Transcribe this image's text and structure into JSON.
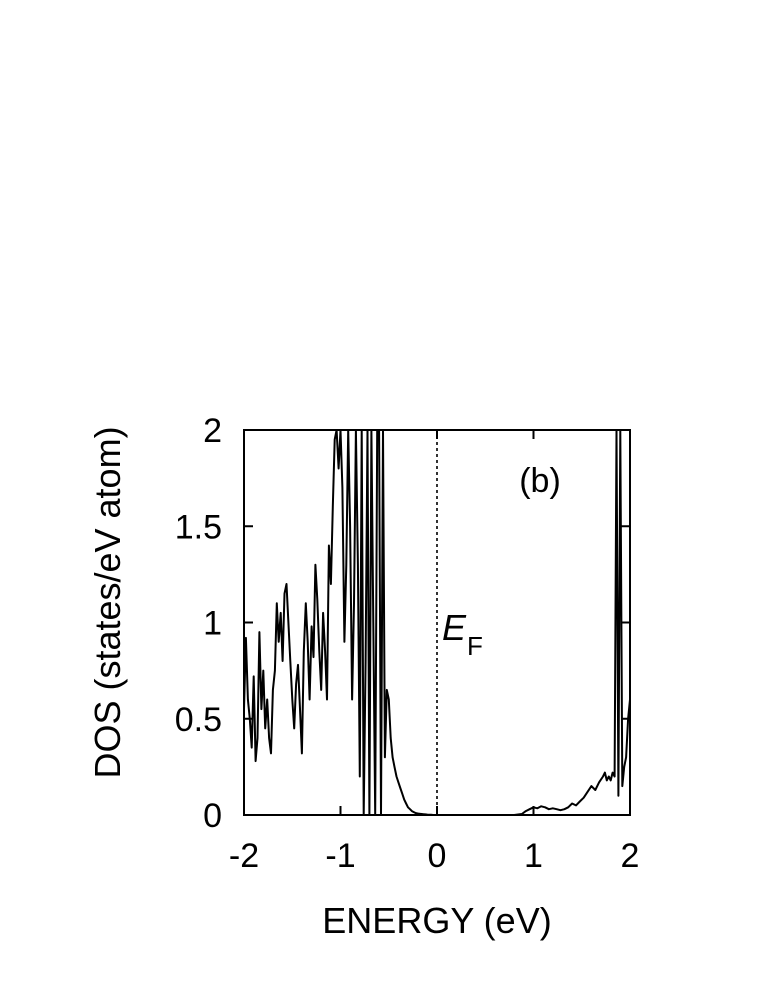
{
  "chart_data": {
    "type": "line",
    "title": "",
    "xlabel": "ENERGY (eV)",
    "ylabel": "DOS (states/eV atom)",
    "xlim": [
      -2,
      2
    ],
    "ylim": [
      0,
      2
    ],
    "xticks": [
      "-2",
      "-1",
      "0",
      "1",
      "2"
    ],
    "yticks": [
      "0",
      "0.5",
      "1",
      "1.5",
      "2"
    ],
    "xtick_values": [
      -2,
      -1,
      0,
      1,
      2
    ],
    "ytick_values": [
      0,
      0.5,
      1,
      1.5,
      2
    ],
    "grid": false,
    "panel_label": "(b)",
    "fermi_level": {
      "x": 0,
      "label_main": "E",
      "label_sub": "F",
      "style": "dotted"
    },
    "series": [
      {
        "x": [
          -2.0,
          -1.98,
          -1.96,
          -1.94,
          -1.92,
          -1.9,
          -1.88,
          -1.86,
          -1.84,
          -1.82,
          -1.8,
          -1.78,
          -1.76,
          -1.74,
          -1.72,
          -1.7,
          -1.68,
          -1.66,
          -1.64,
          -1.62,
          -1.6,
          -1.58,
          -1.56,
          -1.54,
          -1.52,
          -1.5,
          -1.48,
          -1.46,
          -1.44,
          -1.42,
          -1.4,
          -1.38,
          -1.36,
          -1.34,
          -1.32,
          -1.3,
          -1.28,
          -1.26,
          -1.24,
          -1.22,
          -1.2,
          -1.18,
          -1.16,
          -1.14,
          -1.12,
          -1.1,
          -1.08,
          -1.06,
          -1.04,
          -1.02,
          -1.0,
          -0.98,
          -0.96,
          -0.94,
          -0.92,
          -0.9,
          -0.88,
          -0.86,
          -0.84,
          -0.82,
          -0.8,
          -0.78,
          -0.76,
          -0.74,
          -0.72,
          -0.7,
          -0.68,
          -0.66,
          -0.64,
          -0.62,
          -0.6,
          -0.58,
          -0.56,
          -0.54,
          -0.52,
          -0.5,
          -0.48,
          -0.46,
          -0.44,
          -0.42,
          -0.4,
          -0.38,
          -0.36,
          -0.34,
          -0.32,
          -0.3,
          -0.28,
          -0.26,
          -0.24,
          -0.22,
          -0.2,
          -0.18,
          -0.16,
          -0.14,
          -0.12,
          -0.1,
          -0.08,
          -0.06,
          -0.04,
          -0.02,
          0.0,
          0.2,
          0.4,
          0.6,
          0.8,
          0.88,
          0.92,
          0.96,
          1.0,
          1.04,
          1.08,
          1.12,
          1.16,
          1.2,
          1.24,
          1.28,
          1.32,
          1.36,
          1.4,
          1.44,
          1.48,
          1.52,
          1.56,
          1.6,
          1.64,
          1.68,
          1.72,
          1.74,
          1.76,
          1.78,
          1.8,
          1.82,
          1.84,
          1.86,
          1.88,
          1.9,
          1.92,
          1.94,
          1.96,
          1.98,
          2.0
        ],
        "y": [
          0.55,
          0.92,
          0.6,
          0.5,
          0.35,
          0.72,
          0.28,
          0.4,
          0.95,
          0.55,
          0.75,
          0.45,
          0.6,
          0.4,
          0.32,
          0.65,
          0.75,
          1.1,
          0.9,
          1.05,
          0.8,
          1.15,
          1.2,
          1.0,
          0.8,
          0.6,
          0.45,
          0.68,
          0.78,
          0.55,
          0.32,
          0.85,
          1.1,
          0.9,
          0.6,
          0.98,
          0.82,
          1.3,
          1.12,
          0.85,
          0.65,
          1.05,
          0.85,
          0.6,
          1.4,
          1.2,
          1.6,
          1.95,
          2.0,
          1.8,
          2.0,
          1.7,
          0.9,
          1.3,
          2.0,
          1.5,
          0.6,
          1.1,
          2.0,
          1.3,
          0.2,
          2.0,
          0.0,
          0.8,
          2.0,
          0.0,
          2.0,
          1.0,
          0.0,
          2.0,
          2.0,
          0.0,
          2.0,
          0.3,
          0.65,
          0.6,
          0.4,
          0.3,
          0.25,
          0.2,
          0.17,
          0.14,
          0.11,
          0.08,
          0.06,
          0.04,
          0.03,
          0.02,
          0.015,
          0.01,
          0.008,
          0.006,
          0.005,
          0.004,
          0.003,
          0.002,
          0.0015,
          0.001,
          0.0,
          0.0,
          0.0,
          0.0,
          0.0,
          0.0,
          0.0,
          0.005,
          0.02,
          0.03,
          0.04,
          0.035,
          0.045,
          0.04,
          0.03,
          0.035,
          0.03,
          0.025,
          0.03,
          0.04,
          0.06,
          0.05,
          0.07,
          0.09,
          0.12,
          0.15,
          0.13,
          0.17,
          0.2,
          0.22,
          0.18,
          0.2,
          0.18,
          0.22,
          0.2,
          2.0,
          0.1,
          2.0,
          0.15,
          0.25,
          0.3,
          0.5,
          0.6
        ]
      }
    ]
  }
}
